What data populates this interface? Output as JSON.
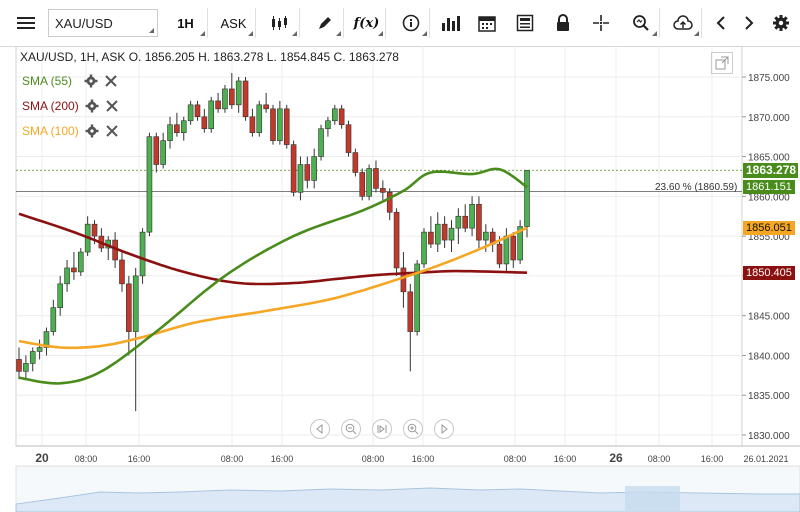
{
  "toolbar": {
    "symbol": "XAU/USD",
    "timeframe": "1H",
    "price_type": "ASK"
  },
  "header": {
    "info": "XAU/USD, 1H, ASK   O. 1856.205 H. 1863.278 L. 1854.845 C. 1863.278"
  },
  "indicators": [
    {
      "label": "SMA (55)",
      "color": "#4a8c1c"
    },
    {
      "label": "SMA (200)",
      "color": "#8b1010"
    },
    {
      "label": "SMA (100)",
      "color": "#f5a623"
    }
  ],
  "price_axis": {
    "ticks": [
      "1875.000",
      "1870.000",
      "1865.000",
      "1860.000",
      "1855.000",
      "1850.000",
      "1845.000",
      "1840.000",
      "1835.000",
      "1830.000"
    ],
    "labels": [
      {
        "text": "1863.278",
        "bg": "#4a8c1c",
        "fg": "#ffffff",
        "value": 1863.278
      },
      {
        "text": "1861.151",
        "bg": "#4a8c1c",
        "fg": "#ffffff",
        "value": 1861.151
      },
      {
        "text": "1856.051",
        "bg": "#f5a623",
        "fg": "#111111",
        "value": 1856.051
      },
      {
        "text": "1850.405",
        "bg": "#8b1010",
        "fg": "#ffffff",
        "value": 1850.405
      }
    ]
  },
  "fib_label": "23.60 % (1860.59)",
  "time_axis": {
    "ticks": [
      {
        "text": "20",
        "bold": true
      },
      {
        "text": "08:00"
      },
      {
        "text": "16:00"
      },
      {
        "text": "08:00"
      },
      {
        "text": "16:00"
      },
      {
        "text": "08:00"
      },
      {
        "text": "16:00"
      },
      {
        "text": "08:00"
      },
      {
        "text": "16:00"
      },
      {
        "text": "26",
        "bold": true
      },
      {
        "text": "08:00"
      },
      {
        "text": "16:00"
      },
      {
        "text": "26.01.2021"
      }
    ]
  },
  "colors": {
    "up": "#4caf50",
    "down": "#c0392b",
    "sma55": "#4a8c1c",
    "sma200": "#8b1010",
    "sma100": "#f5a623"
  },
  "chart_data": {
    "type": "candlestick",
    "ylim": [
      1829,
      1877
    ],
    "candles": [
      [
        1839.5,
        1841,
        1837,
        1838
      ],
      [
        1838,
        1840,
        1837,
        1839
      ],
      [
        1839,
        1841,
        1838,
        1840.5
      ],
      [
        1840.5,
        1842,
        1839.5,
        1841
      ],
      [
        1841,
        1843.5,
        1840,
        1843
      ],
      [
        1843,
        1847,
        1842.5,
        1846
      ],
      [
        1846,
        1850,
        1845,
        1849
      ],
      [
        1849,
        1852,
        1848,
        1851
      ],
      [
        1851,
        1853,
        1849.5,
        1850.5
      ],
      [
        1850.5,
        1853.5,
        1850,
        1853
      ],
      [
        1853,
        1857.5,
        1852.5,
        1856.5
      ],
      [
        1856.5,
        1857,
        1854,
        1855
      ],
      [
        1855,
        1856,
        1853,
        1853.5
      ],
      [
        1853.5,
        1855,
        1852,
        1854.5
      ],
      [
        1854.5,
        1855.5,
        1851,
        1852
      ],
      [
        1852,
        1853,
        1848,
        1849
      ],
      [
        1849,
        1850,
        1840,
        1843
      ],
      [
        1843,
        1851,
        1833,
        1850
      ],
      [
        1850,
        1856,
        1849,
        1855.5
      ],
      [
        1855.5,
        1868,
        1855,
        1867.5
      ],
      [
        1867.5,
        1868,
        1863,
        1864
      ],
      [
        1864,
        1868,
        1863.5,
        1867
      ],
      [
        1867,
        1870,
        1866,
        1869
      ],
      [
        1869,
        1870.5,
        1867.5,
        1868
      ],
      [
        1868,
        1870,
        1867,
        1869.5
      ],
      [
        1869.5,
        1872,
        1869,
        1871.5
      ],
      [
        1871.5,
        1872,
        1869.5,
        1870
      ],
      [
        1870,
        1871,
        1868,
        1868.5
      ],
      [
        1868.5,
        1872.5,
        1868,
        1872
      ],
      [
        1872,
        1873,
        1870.5,
        1871
      ],
      [
        1871,
        1874,
        1870.5,
        1873.5
      ],
      [
        1873.5,
        1875.5,
        1871,
        1871.5
      ],
      [
        1871.5,
        1875,
        1870.5,
        1874.5
      ],
      [
        1874.5,
        1875,
        1869.5,
        1870
      ],
      [
        1870,
        1871,
        1867.5,
        1868
      ],
      [
        1868,
        1872,
        1867.5,
        1871.5
      ],
      [
        1871.5,
        1873,
        1870.5,
        1871
      ],
      [
        1871,
        1871.5,
        1866.5,
        1867
      ],
      [
        1867,
        1872,
        1866.5,
        1871
      ],
      [
        1871,
        1871.5,
        1866,
        1866.5
      ],
      [
        1866.5,
        1867,
        1860,
        1860.5
      ],
      [
        1860.5,
        1865,
        1859.5,
        1864
      ],
      [
        1864,
        1865,
        1861,
        1862
      ],
      [
        1862,
        1866,
        1861,
        1865
      ],
      [
        1865,
        1869,
        1864.5,
        1868.5
      ],
      [
        1868.5,
        1870,
        1867.5,
        1869.5
      ],
      [
        1869.5,
        1871.5,
        1869,
        1871
      ],
      [
        1871,
        1871.5,
        1868.5,
        1869
      ],
      [
        1869,
        1869.5,
        1865,
        1865.5
      ],
      [
        1865.5,
        1866,
        1862.5,
        1863
      ],
      [
        1863,
        1863.5,
        1859.5,
        1860
      ],
      [
        1860,
        1864,
        1859.5,
        1863.5
      ],
      [
        1863.5,
        1864.5,
        1860.5,
        1861
      ],
      [
        1861,
        1862,
        1859.5,
        1860.5
      ],
      [
        1860.5,
        1861,
        1857,
        1858
      ],
      [
        1858,
        1858.5,
        1850,
        1851
      ],
      [
        1851,
        1853,
        1846,
        1848
      ],
      [
        1848,
        1849,
        1838,
        1843
      ],
      [
        1843,
        1852,
        1842.5,
        1851.5
      ],
      [
        1851.5,
        1856,
        1851,
        1855.5
      ],
      [
        1855.5,
        1857.5,
        1853.5,
        1854
      ],
      [
        1854,
        1858,
        1853,
        1856.5
      ],
      [
        1856.5,
        1857.5,
        1853.5,
        1854.5
      ],
      [
        1854.5,
        1857,
        1853,
        1856
      ],
      [
        1856,
        1858.5,
        1854,
        1857.5
      ],
      [
        1857.5,
        1859,
        1855.5,
        1856
      ],
      [
        1856,
        1860,
        1855,
        1859
      ],
      [
        1859,
        1860,
        1853.5,
        1854.5
      ],
      [
        1854.5,
        1856.5,
        1853,
        1855.5
      ],
      [
        1855.5,
        1856,
        1853,
        1854
      ],
      [
        1854,
        1855,
        1851,
        1851.5
      ],
      [
        1851.5,
        1856,
        1850.5,
        1855
      ],
      [
        1855,
        1855.5,
        1851,
        1852
      ],
      [
        1852,
        1857,
        1851.5,
        1856.205
      ],
      [
        1856.205,
        1863.278,
        1854.845,
        1863.278
      ]
    ],
    "sma55": [
      [
        0,
        1837.2
      ],
      [
        6,
        1836.5
      ],
      [
        12,
        1838
      ],
      [
        20,
        1843
      ],
      [
        30,
        1850
      ],
      [
        40,
        1855
      ],
      [
        50,
        1858.2
      ],
      [
        56,
        1860.7
      ],
      [
        60,
        1863
      ],
      [
        66,
        1862.8
      ],
      [
        70,
        1863.4
      ],
      [
        74,
        1861.151
      ]
    ],
    "sma100": [
      [
        0,
        1841.8
      ],
      [
        6,
        1841
      ],
      [
        12,
        1841.2
      ],
      [
        18,
        1842.3
      ],
      [
        26,
        1844.2
      ],
      [
        36,
        1845.6
      ],
      [
        46,
        1847.2
      ],
      [
        56,
        1849.8
      ],
      [
        62,
        1851.6
      ],
      [
        68,
        1853.7
      ],
      [
        74,
        1856.051
      ]
    ],
    "sma200": [
      [
        0,
        1857.8
      ],
      [
        8,
        1855.5
      ],
      [
        16,
        1852.8
      ],
      [
        24,
        1850.5
      ],
      [
        32,
        1849.1
      ],
      [
        40,
        1849.1
      ],
      [
        46,
        1849.6
      ],
      [
        52,
        1850.1
      ],
      [
        58,
        1850.4
      ],
      [
        64,
        1850.6
      ],
      [
        74,
        1850.405
      ]
    ]
  }
}
